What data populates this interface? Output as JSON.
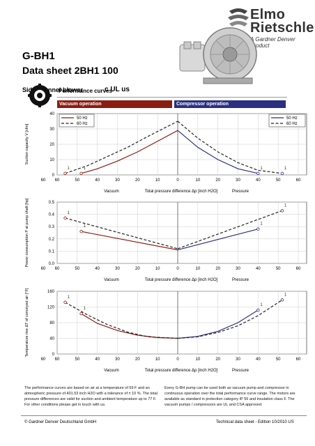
{
  "header": {
    "logo_line1": "Elmo",
    "logo_line2": "Rietschle",
    "logo_sub": "A Gardner Denver Product",
    "model": "G-BH1",
    "title": "Data sheet 2BH1 100",
    "subtitle": "Side channel blower",
    "certification": "c UL us"
  },
  "section": {
    "title": "Performance curves",
    "vacuum_label": "Vacuum operation",
    "compressor_label": "Compressor operation"
  },
  "colors": {
    "vacuum": "#8b1c12",
    "compressor": "#2a2f82",
    "dashed": "#222222"
  },
  "icons": [
    "gear-icon",
    "blower-icon"
  ],
  "chart_data": [
    {
      "type": "line",
      "ylabel": "Suction capacity V̇ [cfm]",
      "xlabel": "Total pressure difference Δp [inch H2O]",
      "x_left_label": "Vacuum",
      "x_right_label": "Pressure",
      "ylim": [
        0,
        40
      ],
      "yticks": [
        "0",
        "10",
        "20",
        "30",
        "40"
      ],
      "xticks_left": [
        "60",
        "50",
        "40",
        "30",
        "20",
        "10"
      ],
      "xticks_right": [
        "10",
        "20",
        "30",
        "40",
        "50",
        "60"
      ],
      "x_zero": "0",
      "legend": [
        "50 Hz",
        "60 Hz"
      ],
      "series": [
        {
          "name": "50 Hz",
          "side": "vacuum",
          "x": [
            48,
            40,
            30,
            20,
            10,
            0
          ],
          "y": [
            1,
            4,
            9,
            15,
            22,
            29
          ]
        },
        {
          "name": "60 Hz",
          "side": "vacuum",
          "x": [
            56,
            45,
            35,
            25,
            15,
            0
          ],
          "y": [
            1,
            6,
            12,
            18,
            25,
            35
          ]
        },
        {
          "name": "50 Hz",
          "side": "compressor",
          "x": [
            0,
            10,
            20,
            30,
            40
          ],
          "y": [
            29,
            18,
            10,
            4,
            1
          ]
        },
        {
          "name": "60 Hz",
          "side": "compressor",
          "x": [
            0,
            10,
            20,
            30,
            40,
            52
          ],
          "y": [
            35,
            24,
            15,
            8,
            3,
            1
          ]
        }
      ],
      "annotations": [
        "1",
        "1",
        "1",
        "1"
      ]
    },
    {
      "type": "line",
      "ylabel": "Power consumption P at pump shaft [hp]",
      "xlabel": "Total pressure difference Δp [inch H2O]",
      "x_left_label": "Vacuum",
      "x_right_label": "Pressure",
      "ylim": [
        0,
        0.5
      ],
      "yticks": [
        "0.0",
        "0.1",
        "0.2",
        "0.3",
        "0.4",
        "0.5"
      ],
      "xticks_left": [
        "60",
        "50",
        "40",
        "30",
        "20",
        "10"
      ],
      "xticks_right": [
        "10",
        "20",
        "30",
        "40",
        "50",
        "60"
      ],
      "x_zero": "0",
      "series": [
        {
          "name": "50 Hz",
          "side": "vacuum",
          "x": [
            48,
            0
          ],
          "y": [
            0.26,
            0.11
          ]
        },
        {
          "name": "60 Hz",
          "side": "vacuum",
          "x": [
            56,
            0
          ],
          "y": [
            0.37,
            0.12
          ]
        },
        {
          "name": "50 Hz",
          "side": "compressor",
          "x": [
            0,
            40
          ],
          "y": [
            0.11,
            0.28
          ]
        },
        {
          "name": "60 Hz",
          "side": "compressor",
          "x": [
            0,
            52
          ],
          "y": [
            0.12,
            0.43
          ]
        }
      ],
      "annotations": [
        "1",
        "1",
        "1",
        "1"
      ]
    },
    {
      "type": "line",
      "ylabel": "Temperature rise ΔT of conveyed air [°F]",
      "xlabel": "Total pressure difference Δp [inch H2O]",
      "x_left_label": "Vacuum",
      "x_right_label": "Pressure",
      "ylim": [
        0,
        160
      ],
      "yticks": [
        "0",
        "40",
        "80",
        "120",
        "160"
      ],
      "xticks_left": [
        "60",
        "50",
        "40",
        "30",
        "20",
        "10"
      ],
      "xticks_right": [
        "10",
        "20",
        "30",
        "40",
        "50",
        "60"
      ],
      "x_zero": "0",
      "series": [
        {
          "name": "50 Hz",
          "side": "vacuum",
          "x": [
            48,
            40,
            30,
            20,
            10,
            0
          ],
          "y": [
            103,
            78,
            60,
            48,
            42,
            40
          ]
        },
        {
          "name": "60 Hz",
          "side": "vacuum",
          "x": [
            56,
            45,
            35,
            25,
            15,
            0
          ],
          "y": [
            132,
            100,
            75,
            56,
            44,
            40
          ]
        },
        {
          "name": "50 Hz",
          "side": "compressor",
          "x": [
            0,
            10,
            20,
            30,
            40
          ],
          "y": [
            40,
            45,
            58,
            80,
            112
          ]
        },
        {
          "name": "60 Hz",
          "side": "compressor",
          "x": [
            0,
            10,
            20,
            30,
            40,
            52
          ],
          "y": [
            40,
            44,
            55,
            72,
            98,
            138
          ]
        }
      ],
      "annotations": [
        "1",
        "1",
        "1",
        "1"
      ]
    }
  ],
  "text": {
    "para_left": "The performance curves are based on air at a temperature of 59 F and an atmospheric pressure of 401.53 inch H2O with a tolerance of ± 10 %. The total pressure differences are valid for suction and ambient temperature up to 77 F. For other conditions please get in touch with us.",
    "para_right": "Every G-BH pump can be used both as vacuum pump and compressor in continuous operation over the total performance curve range. The motors are available as standard in protection category IP 55 and insulation class F. The vacuum pumps / compressors are UL and CSA approved."
  },
  "footer": {
    "left": "© Gardner Denver Deutschland GmbH",
    "right": "Technical data sheet - Edition 10/2010 US"
  }
}
